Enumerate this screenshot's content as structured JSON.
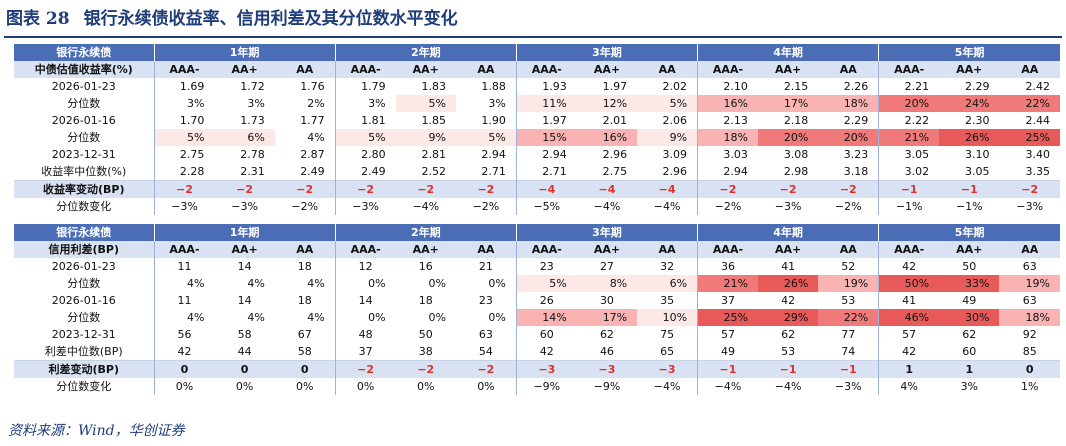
{
  "title": {
    "fig": "图表 28",
    "text": "银行永续债收益率、信用利差及其分位数水平变化"
  },
  "source": "资料来源：Wind，华创证券",
  "groups": [
    "1年期",
    "2年期",
    "3年期",
    "4年期",
    "5年期"
  ],
  "ratings": [
    "AAA-",
    "AA+",
    "AA"
  ],
  "heat_colors": {
    "light": "#fde8e8",
    "mid": "#f9b3b3",
    "strong": "#f07a7a",
    "deep": "#e85a5a",
    "neg_text": "#e0312b"
  },
  "tables": [
    {
      "head_label": "银行永续债",
      "sub_label": "中债估值收益率(%)",
      "rows": [
        {
          "label": "2026-01-23",
          "type": "val",
          "cells": [
            "1.69",
            "1.72",
            "1.76",
            "1.79",
            "1.83",
            "1.88",
            "1.93",
            "1.97",
            "2.02",
            "2.10",
            "2.15",
            "2.26",
            "2.21",
            "2.29",
            "2.42"
          ]
        },
        {
          "label": "分位数",
          "type": "pct",
          "cells": [
            "3%",
            "3%",
            "2%",
            "3%",
            "5%",
            "3%",
            "11%",
            "12%",
            "5%",
            "16%",
            "17%",
            "18%",
            "20%",
            "24%",
            "22%"
          ]
        },
        {
          "label": "2026-01-16",
          "type": "val",
          "cells": [
            "1.70",
            "1.73",
            "1.77",
            "1.81",
            "1.85",
            "1.90",
            "1.97",
            "2.01",
            "2.06",
            "2.13",
            "2.18",
            "2.29",
            "2.22",
            "2.30",
            "2.44"
          ]
        },
        {
          "label": "分位数",
          "type": "pct",
          "cells": [
            "5%",
            "6%",
            "4%",
            "5%",
            "9%",
            "5%",
            "15%",
            "16%",
            "9%",
            "18%",
            "20%",
            "20%",
            "21%",
            "26%",
            "25%"
          ]
        },
        {
          "label": "2023-12-31",
          "type": "val",
          "cells": [
            "2.75",
            "2.78",
            "2.87",
            "2.80",
            "2.81",
            "2.94",
            "2.94",
            "2.96",
            "3.09",
            "3.03",
            "3.08",
            "3.23",
            "3.05",
            "3.10",
            "3.40"
          ]
        },
        {
          "label": "收益率中位数(%)",
          "type": "val",
          "cells": [
            "2.28",
            "2.31",
            "2.49",
            "2.49",
            "2.52",
            "2.71",
            "2.71",
            "2.75",
            "2.96",
            "2.94",
            "2.98",
            "3.18",
            "3.02",
            "3.05",
            "3.35"
          ]
        },
        {
          "label": "收益率变动(BP)",
          "type": "chg",
          "cells": [
            "−2",
            "−2",
            "−2",
            "−2",
            "−2",
            "−2",
            "−4",
            "−4",
            "−4",
            "−2",
            "−2",
            "−2",
            "−1",
            "−1",
            "−2"
          ]
        },
        {
          "label": "分位数变化",
          "type": "pctchg",
          "cells": [
            "−3%",
            "−3%",
            "−2%",
            "−3%",
            "−4%",
            "−2%",
            "−5%",
            "−4%",
            "−4%",
            "−2%",
            "−3%",
            "−2%",
            "−1%",
            "−1%",
            "−3%"
          ]
        }
      ]
    },
    {
      "head_label": "银行永续债",
      "sub_label": "信用利差(BP)",
      "rows": [
        {
          "label": "2026-01-23",
          "type": "int",
          "cells": [
            "11",
            "14",
            "18",
            "12",
            "16",
            "21",
            "23",
            "27",
            "32",
            "36",
            "41",
            "52",
            "42",
            "50",
            "63"
          ]
        },
        {
          "label": "分位数",
          "type": "pct",
          "cells": [
            "4%",
            "4%",
            "4%",
            "0%",
            "0%",
            "0%",
            "5%",
            "8%",
            "6%",
            "21%",
            "26%",
            "19%",
            "50%",
            "33%",
            "19%"
          ]
        },
        {
          "label": "2026-01-16",
          "type": "int",
          "cells": [
            "11",
            "14",
            "18",
            "14",
            "18",
            "23",
            "26",
            "30",
            "35",
            "37",
            "42",
            "53",
            "41",
            "49",
            "63"
          ]
        },
        {
          "label": "分位数",
          "type": "pct",
          "cells": [
            "4%",
            "4%",
            "4%",
            "0%",
            "0%",
            "0%",
            "14%",
            "17%",
            "10%",
            "25%",
            "29%",
            "22%",
            "46%",
            "30%",
            "18%"
          ]
        },
        {
          "label": "2023-12-31",
          "type": "int",
          "cells": [
            "56",
            "58",
            "67",
            "48",
            "50",
            "63",
            "60",
            "62",
            "75",
            "57",
            "62",
            "77",
            "57",
            "62",
            "92"
          ]
        },
        {
          "label": "利差中位数(BP)",
          "type": "int",
          "cells": [
            "42",
            "44",
            "58",
            "37",
            "38",
            "54",
            "42",
            "46",
            "65",
            "49",
            "53",
            "74",
            "42",
            "60",
            "85"
          ]
        },
        {
          "label": "利差变动(BP)",
          "type": "chg",
          "cells": [
            "0",
            "0",
            "0",
            "−2",
            "−2",
            "−2",
            "−3",
            "−3",
            "−3",
            "−1",
            "−1",
            "−1",
            "1",
            "1",
            "0"
          ]
        },
        {
          "label": "分位数变化",
          "type": "pctchg",
          "cells": [
            "0%",
            "0%",
            "0%",
            "0%",
            "0%",
            "0%",
            "−9%",
            "−9%",
            "−4%",
            "−4%",
            "−4%",
            "−3%",
            "4%",
            "3%",
            "1%"
          ]
        }
      ]
    }
  ]
}
